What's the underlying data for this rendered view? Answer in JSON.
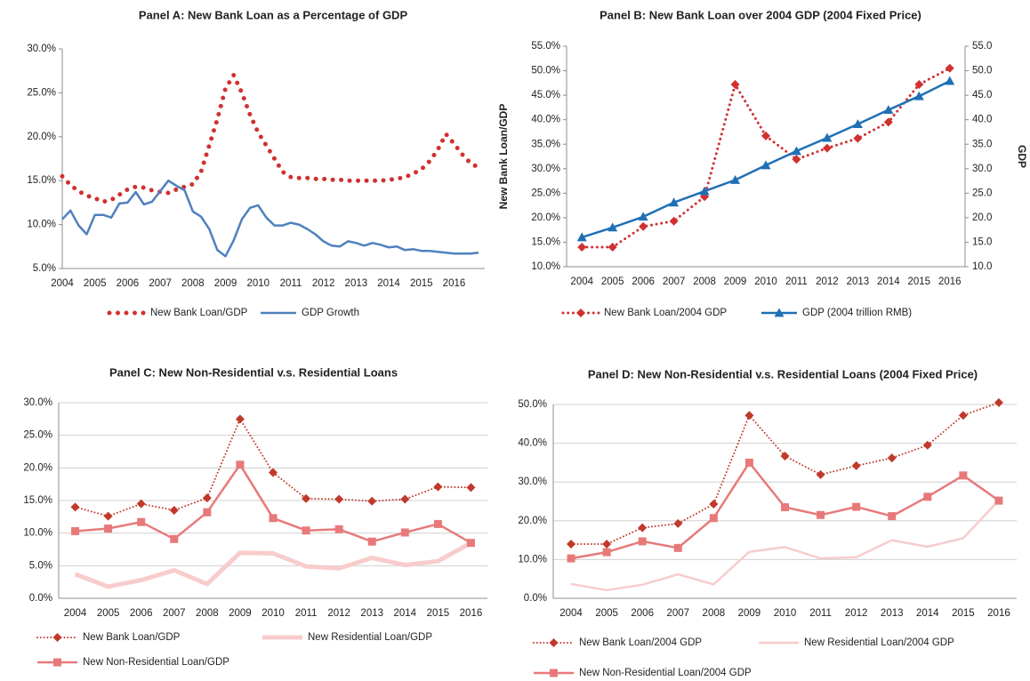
{
  "chart_data": [
    {
      "type": "line",
      "title": "Panel A: New Bank Loan as a Percentage of GDP",
      "categories": [
        "2004",
        null,
        null,
        null,
        "2005",
        null,
        null,
        null,
        "2006",
        null,
        null,
        null,
        "2007",
        null,
        null,
        null,
        "2008",
        null,
        null,
        null,
        "2009",
        null,
        null,
        null,
        "2010",
        null,
        null,
        null,
        "2011",
        null,
        null,
        null,
        "2012",
        null,
        null,
        null,
        "2013",
        null,
        null,
        null,
        "2014",
        null,
        null,
        null,
        "2015",
        null,
        null,
        null,
        "2016",
        null,
        null,
        null
      ],
      "series": [
        {
          "name": "New Bank Loan/GDP",
          "color": "#d03030",
          "dash": "dot",
          "line_width": 5,
          "values": [
            15.5,
            14.5,
            13.8,
            13.3,
            13.0,
            12.6,
            12.8,
            13.4,
            14.0,
            14.3,
            14.2,
            13.9,
            13.7,
            13.6,
            14.0,
            14.3,
            14.6,
            16.0,
            19.0,
            22.0,
            25.5,
            27.0,
            25.0,
            22.5,
            20.5,
            19.0,
            17.5,
            16.0,
            15.4,
            15.3,
            15.3,
            15.2,
            15.2,
            15.1,
            15.1,
            15.0,
            15.0,
            15.0,
            15.0,
            15.0,
            15.1,
            15.2,
            15.4,
            15.8,
            16.3,
            17.2,
            18.5,
            20.3,
            19.2,
            18.0,
            17.0,
            16.5
          ]
        },
        {
          "name": "GDP Growth",
          "color": "#4f81bd",
          "line_width": 2.5,
          "values": [
            10.6,
            11.6,
            9.9,
            8.9,
            11.1,
            11.1,
            10.8,
            12.4,
            12.5,
            13.7,
            12.3,
            12.6,
            13.8,
            15.0,
            14.4,
            13.9,
            11.5,
            10.9,
            9.5,
            7.1,
            6.4,
            8.2,
            10.6,
            11.9,
            12.2,
            10.8,
            9.9,
            9.9,
            10.2,
            10.0,
            9.5,
            8.9,
            8.1,
            7.6,
            7.5,
            8.1,
            7.9,
            7.6,
            7.9,
            7.7,
            7.4,
            7.5,
            7.1,
            7.2,
            7.0,
            7.0,
            6.9,
            6.8,
            6.7,
            6.7,
            6.7,
            6.8
          ]
        }
      ],
      "ylim": [
        5,
        30
      ],
      "yticks": [
        {
          "value": 5,
          "label": "5.0%"
        },
        {
          "value": 10,
          "label": "10.0%"
        },
        {
          "value": 15,
          "label": "15.0%"
        },
        {
          "value": 20,
          "label": "20.0%"
        },
        {
          "value": 25,
          "label": "25.0%"
        },
        {
          "value": 30,
          "label": "30.0%"
        }
      ],
      "grid": false,
      "legend": "bottom"
    },
    {
      "type": "line",
      "title": "Panel B: New Bank Loan over 2004 GDP (2004 Fixed Price)",
      "y_label": "New Bank Loan/GDP",
      "y2_label": "GDP",
      "categories": [
        "2004",
        "2005",
        "2006",
        "2007",
        "2008",
        "2009",
        "2010",
        "2011",
        "2012",
        "2013",
        "2014",
        "2015",
        "2016"
      ],
      "series": [
        {
          "name": "New Bank Loan/2004 GDP",
          "color": "#d03030",
          "dash": "dot",
          "line_width": 3,
          "marker": "diamond",
          "values": [
            14.0,
            14.0,
            18.2,
            19.3,
            24.3,
            47.2,
            36.7,
            31.9,
            34.2,
            36.2,
            39.5,
            47.2,
            50.5
          ]
        },
        {
          "name": "GDP (2004 trillion RMB)",
          "color": "#1f6fb5",
          "line_width": 2.5,
          "marker": "triangle",
          "axis": "y2",
          "values": [
            16.0,
            18.0,
            20.2,
            23.1,
            25.4,
            27.7,
            30.7,
            33.6,
            36.3,
            39.1,
            42.0,
            44.8,
            47.9
          ]
        }
      ],
      "ylim": [
        10,
        55
      ],
      "yticks": [
        {
          "value": 10,
          "label": "10.0%"
        },
        {
          "value": 15,
          "label": "15.0%"
        },
        {
          "value": 20,
          "label": "20.0%"
        },
        {
          "value": 25,
          "label": "25.0%"
        },
        {
          "value": 30,
          "label": "30.0%"
        },
        {
          "value": 35,
          "label": "35.0%"
        },
        {
          "value": 40,
          "label": "40.0%"
        },
        {
          "value": 45,
          "label": "45.0%"
        },
        {
          "value": 50,
          "label": "50.0%"
        },
        {
          "value": 55,
          "label": "55.0%"
        }
      ],
      "y2lim": [
        10,
        55
      ],
      "y2ticks": [
        {
          "value": 10,
          "label": "10.0"
        },
        {
          "value": 15,
          "label": "15.0"
        },
        {
          "value": 20,
          "label": "20.0"
        },
        {
          "value": 25,
          "label": "25.0"
        },
        {
          "value": 30,
          "label": "30.0"
        },
        {
          "value": 35,
          "label": "35.0"
        },
        {
          "value": 40,
          "label": "40.0"
        },
        {
          "value": 45,
          "label": "45.0"
        },
        {
          "value": 50,
          "label": "50.0"
        },
        {
          "value": 55,
          "label": "55.0"
        }
      ],
      "grid": false,
      "legend": "bottom"
    },
    {
      "type": "line",
      "title": "Panel C: New Non-Residential v.s. Residential Loans",
      "categories": [
        "2004",
        "2005",
        "2006",
        "2007",
        "2008",
        "2009",
        "2010",
        "2011",
        "2012",
        "2013",
        "2014",
        "2015",
        "2016"
      ],
      "series": [
        {
          "name": "New Bank Loan/GDP",
          "color": "#c0392b",
          "dash": "dot",
          "line_width": 2,
          "marker": "diamond",
          "values": [
            14.0,
            12.6,
            14.5,
            13.5,
            15.4,
            27.5,
            19.3,
            15.3,
            15.2,
            14.9,
            15.2,
            17.1,
            17.0
          ]
        },
        {
          "name": "New Residential Loan/GDP",
          "color": "#f8cccc",
          "line_width": 5,
          "values": [
            3.7,
            1.8,
            2.8,
            4.3,
            2.2,
            7.0,
            6.9,
            4.9,
            4.6,
            6.2,
            5.1,
            5.7,
            8.5
          ]
        },
        {
          "name": "New Non-Residential Loan/GDP",
          "color": "#e8797a",
          "line_width": 2.5,
          "marker": "square",
          "values": [
            10.3,
            10.7,
            11.7,
            9.1,
            13.2,
            20.5,
            12.3,
            10.4,
            10.6,
            8.7,
            10.1,
            11.4,
            8.5
          ]
        }
      ],
      "ylim": [
        0,
        30
      ],
      "yticks": [
        {
          "value": 0,
          "label": "0.0%"
        },
        {
          "value": 5,
          "label": "5.0%"
        },
        {
          "value": 10,
          "label": "10.0%"
        },
        {
          "value": 15,
          "label": "15.0%"
        },
        {
          "value": 20,
          "label": "20.0%"
        },
        {
          "value": 25,
          "label": "25.0%"
        },
        {
          "value": 30,
          "label": "30.0%"
        }
      ],
      "grid": true,
      "legend": "bottom"
    },
    {
      "type": "line",
      "title": "Panel D: New Non-Residential v.s. Residential Loans (2004 Fixed Price)",
      "categories": [
        "2004",
        "2005",
        "2006",
        "2007",
        "2008",
        "2009",
        "2010",
        "2011",
        "2012",
        "2013",
        "2014",
        "2015",
        "2016"
      ],
      "series": [
        {
          "name": "New Bank Loan/2004 GDP",
          "color": "#c0392b",
          "dash": "dot",
          "line_width": 2,
          "marker": "diamond",
          "values": [
            14.0,
            14.0,
            18.2,
            19.3,
            24.3,
            47.2,
            36.7,
            31.9,
            34.2,
            36.2,
            39.5,
            47.2,
            50.5
          ]
        },
        {
          "name": "New Residential Loan/2004 GDP",
          "color": "#f8cccc",
          "line_width": 2.5,
          "values": [
            3.7,
            2.1,
            3.5,
            6.2,
            3.6,
            12.0,
            13.2,
            10.3,
            10.6,
            15.0,
            13.3,
            15.5,
            25.3
          ]
        },
        {
          "name": "New Non-Residential Loan/2004 GDP",
          "color": "#e8797a",
          "line_width": 2.5,
          "marker": "square",
          "values": [
            10.3,
            11.9,
            14.7,
            13.0,
            20.7,
            35.0,
            23.5,
            21.5,
            23.6,
            21.2,
            26.2,
            31.7,
            25.2
          ]
        }
      ],
      "ylim": [
        0,
        50
      ],
      "yticks": [
        {
          "value": 0,
          "label": "0.0%"
        },
        {
          "value": 10,
          "label": "10.0%"
        },
        {
          "value": 20,
          "label": "20.0%"
        },
        {
          "value": 30,
          "label": "30.0%"
        },
        {
          "value": 40,
          "label": "40.0%"
        },
        {
          "value": 50,
          "label": "50.0%"
        }
      ],
      "grid": true,
      "legend": "bottom"
    }
  ]
}
